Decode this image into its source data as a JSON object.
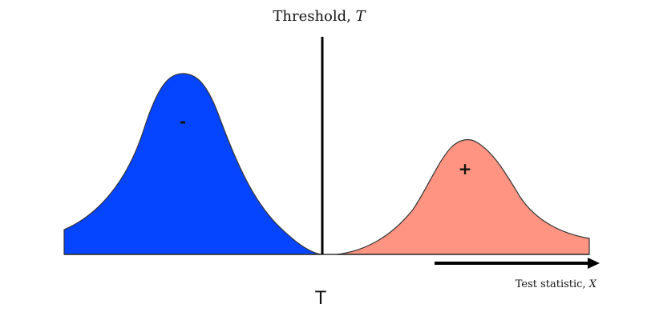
{
  "diagram": {
    "title_text": "Threshold, ",
    "title_symbol": "T",
    "threshold_marker": "T",
    "x_axis_text": "Test statistic, ",
    "x_axis_symbol": "X",
    "negative_label": "-",
    "positive_label": "+"
  },
  "colors": {
    "negative_fill": "#0645FF",
    "positive_fill": "#FF9482",
    "outline": "#333333",
    "axis": "#000000"
  }
}
